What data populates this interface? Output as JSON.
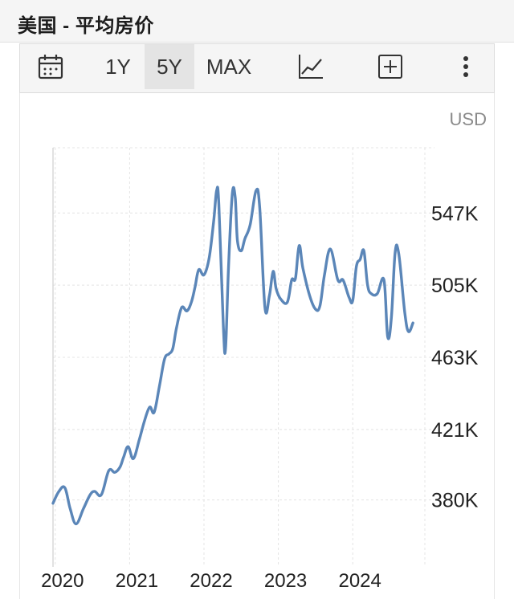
{
  "header": {
    "title": "美国 - 平均房价"
  },
  "toolbar": {
    "calendar_icon": "calendar-icon",
    "ranges": [
      "1Y",
      "5Y",
      "MAX"
    ],
    "active_range": "5Y",
    "chart_type_icon": "line-chart-icon",
    "add_icon": "add-box-icon",
    "more_icon": "more-vertical-icon"
  },
  "chart_data": {
    "type": "line",
    "currency_label": "USD",
    "x_tick_labels": [
      "2020",
      "2021",
      "2022",
      "2023",
      "2024"
    ],
    "y_tick_labels": [
      "547K",
      "505K",
      "463K",
      "421K",
      "380K"
    ],
    "y_tick_values": [
      547,
      505,
      463,
      421,
      380
    ],
    "ylim": [
      341,
      585
    ],
    "xlim": [
      2019.97,
      2024.97
    ],
    "grid": true,
    "line_color": "#5b86b8",
    "series": [
      {
        "x": [
          2019.97,
          2020.05,
          2020.13,
          2020.2,
          2020.28,
          2020.38,
          2020.47,
          2020.53,
          2020.62,
          2020.72,
          2020.8,
          2020.87,
          2020.92,
          2020.98,
          2021.05,
          2021.13,
          2021.2,
          2021.27,
          2021.33,
          2021.4,
          2021.47,
          2021.53,
          2021.58,
          2021.63,
          2021.7,
          2021.77,
          2021.83,
          2021.88,
          2021.93,
          2022.0,
          2022.07,
          2022.13,
          2022.17,
          2022.2,
          2022.26,
          2022.29,
          2022.33,
          2022.38,
          2022.42,
          2022.45,
          2022.5,
          2022.55,
          2022.62,
          2022.7,
          2022.75,
          2022.82,
          2022.88,
          2022.93,
          2022.97,
          2023.03,
          2023.12,
          2023.18,
          2023.23,
          2023.28,
          2023.33,
          2023.42,
          2023.5,
          2023.56,
          2023.62,
          2023.7,
          2023.8,
          2023.87,
          2023.95,
          2024.0,
          2024.05,
          2024.1,
          2024.15,
          2024.2,
          2024.25,
          2024.33,
          2024.42,
          2024.47,
          2024.52,
          2024.57,
          2024.62,
          2024.7,
          2024.75,
          2024.81
        ],
        "values": [
          378,
          385,
          387,
          375,
          366,
          375,
          383,
          385,
          383,
          397,
          396,
          399,
          405,
          411,
          404,
          415,
          426,
          434,
          431,
          446,
          462,
          465,
          468,
          480,
          492,
          490,
          495,
          504,
          514,
          511,
          521,
          542,
          560,
          552,
          481,
          468,
          515,
          558,
          556,
          531,
          525,
          532,
          540,
          560,
          550,
          492,
          499,
          513,
          503,
          497,
          495,
          508,
          509,
          528,
          515,
          499,
          491,
          493,
          511,
          526,
          508,
          508,
          498,
          496,
          516,
          520,
          525,
          505,
          500,
          500,
          508,
          475,
          486,
          524,
          523,
          489,
          478,
          483
        ]
      }
    ]
  }
}
